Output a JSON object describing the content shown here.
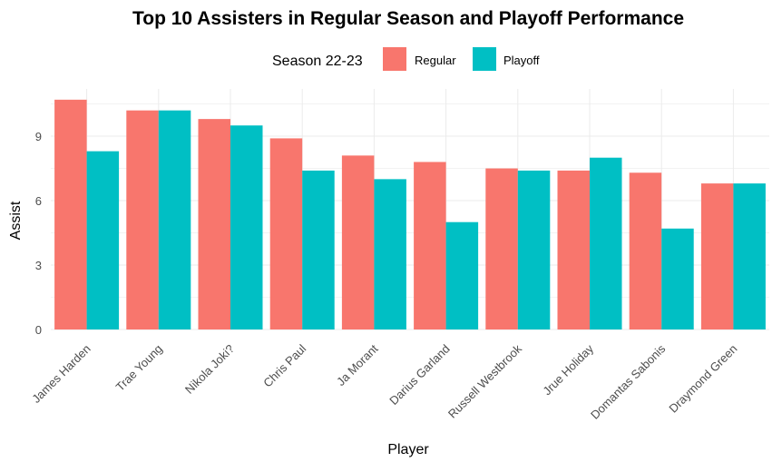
{
  "chart_data": {
    "type": "bar",
    "title": "Top 10 Assisters in Regular Season and Playoff Performance",
    "xlabel": "Player",
    "ylabel": "Assist",
    "ylim": [
      0,
      11.2
    ],
    "yticks": [
      0,
      3,
      6,
      9
    ],
    "grid": true,
    "legend": {
      "title": "Season 22-23",
      "placement": "top"
    },
    "categories": [
      "James Harden",
      "Trae Young",
      "Nikola Joki?",
      "Chris Paul",
      "Ja Morant",
      "Darius Garland",
      "Russell Westbrook",
      "Jrue Holiday",
      "Domantas Sabonis",
      "Draymond Green"
    ],
    "series": [
      {
        "name": "Regular",
        "color": "#F8766D",
        "values": [
          10.7,
          10.2,
          9.8,
          8.9,
          8.1,
          7.8,
          7.5,
          7.4,
          7.3,
          6.8
        ]
      },
      {
        "name": "Playoff",
        "color": "#00BFC4",
        "values": [
          8.3,
          10.2,
          9.5,
          7.4,
          7.0,
          5.0,
          7.4,
          8.0,
          4.7,
          6.8
        ]
      }
    ]
  }
}
